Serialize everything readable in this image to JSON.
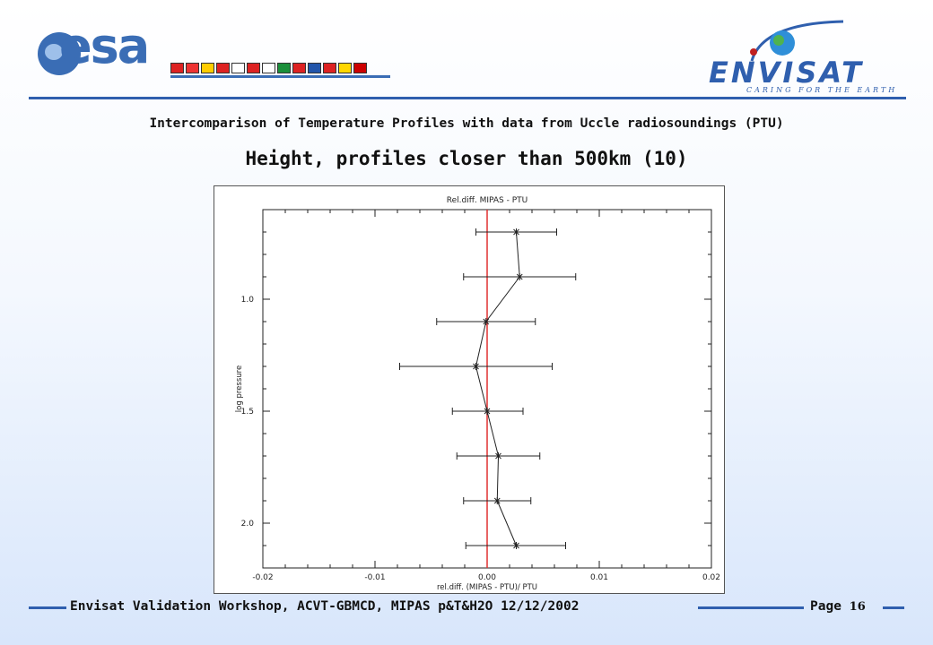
{
  "header": {
    "esa_logo_text": "esa",
    "envisat_name": "ENVISAT",
    "envisat_tagline": "CARING FOR THE EARTH",
    "flag_colors": [
      "#d22",
      "#e33",
      "#ffcc00",
      "#d22",
      "#fff",
      "#d22",
      "#ffffff",
      "#1a8f3a",
      "#d22",
      "#2255aa",
      "#d22",
      "#ffd700",
      "#c00"
    ]
  },
  "subtitle": "Intercomparison of Temperature Profiles with data from Uccle radiosoundings (PTU)",
  "title": "Height, profiles closer than 500km (10)",
  "chart_data": {
    "type": "line",
    "title": "Rel.diff. MIPAS - PTU",
    "xlabel": "rel.diff. (MIPAS - PTU)/ PTU",
    "ylabel": "log pressure",
    "xlim": [
      -0.02,
      0.02
    ],
    "ylim_reversed": [
      0.6,
      2.2
    ],
    "x_ticks": [
      -0.02,
      -0.01,
      0.0,
      0.01,
      0.02
    ],
    "x_tick_labels": [
      "-0.02",
      "-0.01",
      "0.00",
      "0.01",
      "0.02"
    ],
    "y_ticks": [
      1.0,
      1.5,
      2.0
    ],
    "y_tick_labels": [
      "1.0",
      "1.5",
      "2.0"
    ],
    "reference_line_x": 0.0,
    "reference_line_color": "#e03030",
    "series": [
      {
        "points": [
          {
            "y": 0.7,
            "x": 0.0026,
            "err_lo": -0.001,
            "err_hi": 0.0062
          },
          {
            "y": 0.9,
            "x": 0.0029,
            "err_lo": -0.0021,
            "err_hi": 0.0079
          },
          {
            "y": 1.1,
            "x": -0.0001,
            "err_lo": -0.0045,
            "err_hi": 0.0043
          },
          {
            "y": 1.3,
            "x": -0.001,
            "err_lo": -0.0078,
            "err_hi": 0.0058
          },
          {
            "y": 1.5,
            "x": 0.0,
            "err_lo": -0.0031,
            "err_hi": 0.0032
          },
          {
            "y": 1.7,
            "x": 0.001,
            "err_lo": -0.0027,
            "err_hi": 0.0047
          },
          {
            "y": 1.9,
            "x": 0.0009,
            "err_lo": -0.0021,
            "err_hi": 0.0039
          },
          {
            "y": 2.1,
            "x": 0.0026,
            "err_lo": -0.0019,
            "err_hi": 0.007
          }
        ]
      }
    ]
  },
  "footer": {
    "left_text": "Envisat Validation Workshop, ACVT-GBMCD,  MIPAS p&T&H2O 12/12/2002",
    "page_label": "Page",
    "page_number": "16"
  }
}
